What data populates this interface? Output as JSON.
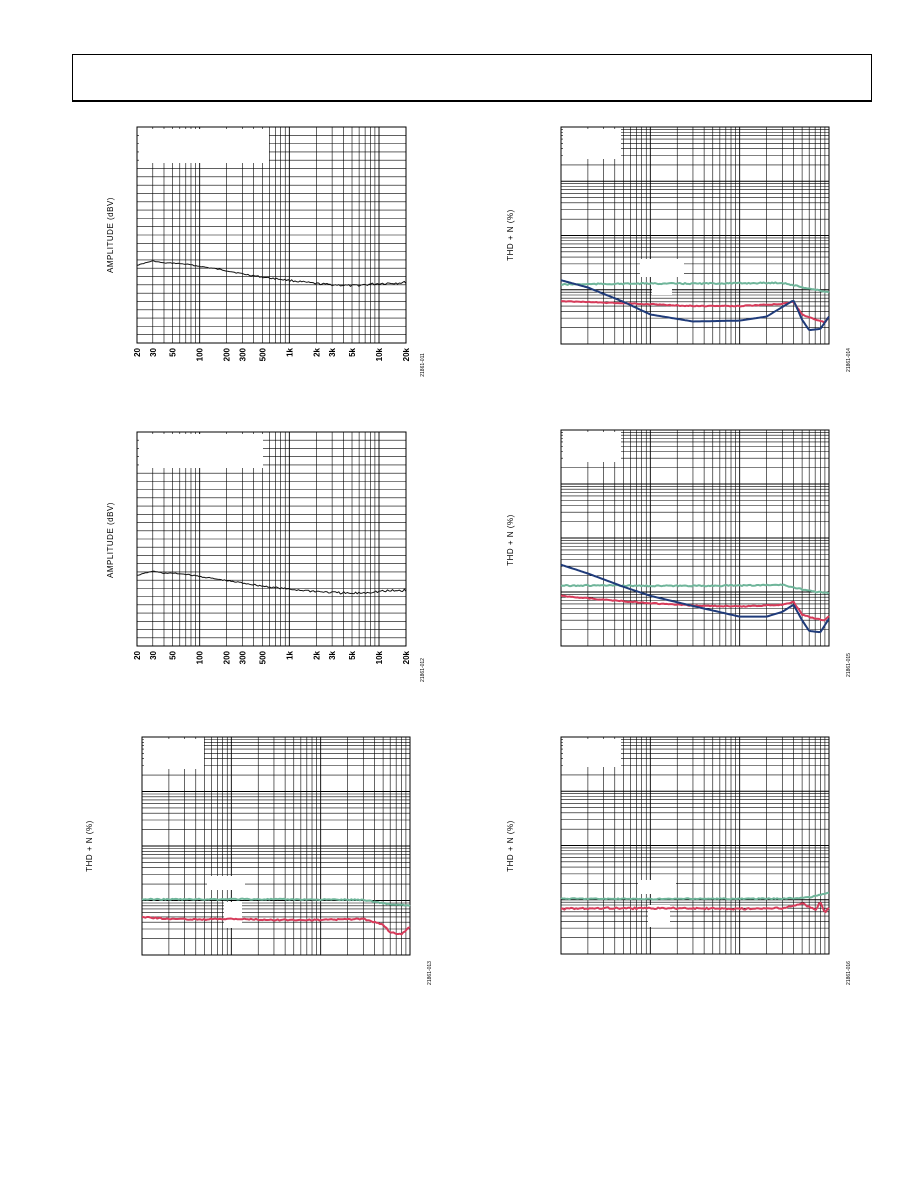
{
  "chart_data": [
    {
      "id": "p1",
      "type": "line",
      "log_x": true,
      "log_y": false,
      "ylabel": "AMPLITUDE (dBV)",
      "figure_id": "21861-011",
      "x_ticks": [
        20,
        30,
        50,
        100,
        200,
        300,
        500,
        1000,
        2000,
        3000,
        5000,
        10000,
        20000
      ],
      "x_tick_labels": [
        "20",
        "30",
        "50",
        "100",
        "200",
        "300",
        "500",
        "1k",
        "2k",
        "3k",
        "5k",
        "10k",
        "20k"
      ],
      "xlim": [
        20,
        20000
      ],
      "ylim": [
        0,
        1
      ],
      "grid": true,
      "series": [
        {
          "color": "#111111",
          "noise": 0.006,
          "x": [
            20,
            30,
            40,
            50,
            70,
            100,
            200,
            300,
            500,
            800,
            1000,
            2000,
            3000,
            5000,
            10000,
            20000
          ],
          "y": [
            0.36,
            0.38,
            0.37,
            0.37,
            0.365,
            0.355,
            0.335,
            0.32,
            0.305,
            0.295,
            0.29,
            0.275,
            0.27,
            0.265,
            0.275,
            0.28
          ]
        }
      ]
    },
    {
      "id": "p2",
      "type": "line",
      "log_x": true,
      "log_y": false,
      "ylabel": "AMPLITUDE (dBV)",
      "figure_id": "21861-012",
      "x_ticks": [
        20,
        30,
        50,
        100,
        200,
        300,
        500,
        1000,
        2000,
        3000,
        5000,
        10000,
        20000
      ],
      "x_tick_labels": [
        "20",
        "30",
        "50",
        "100",
        "200",
        "300",
        "500",
        "1k",
        "2k",
        "3k",
        "5k",
        "10k",
        "20k"
      ],
      "xlim": [
        20,
        20000
      ],
      "ylim": [
        0,
        1
      ],
      "grid": true,
      "series": [
        {
          "color": "#111111",
          "noise": 0.007,
          "x": [
            20,
            30,
            40,
            50,
            70,
            100,
            200,
            300,
            500,
            800,
            1000,
            2000,
            3000,
            5000,
            10000,
            20000
          ],
          "y": [
            0.33,
            0.35,
            0.34,
            0.34,
            0.335,
            0.325,
            0.305,
            0.295,
            0.28,
            0.27,
            0.265,
            0.255,
            0.25,
            0.245,
            0.255,
            0.26
          ]
        }
      ]
    },
    {
      "id": "p3",
      "type": "line",
      "log_x": true,
      "log_y": true,
      "ylabel": "THD + N (%)",
      "figure_id": "21861-013",
      "x_ticks": [],
      "x_tick_labels": [],
      "xlim": [
        1,
        1000
      ],
      "ylim": [
        0.001,
        10
      ],
      "grid": true,
      "series": [
        {
          "color": "#6fb59a",
          "noise": 0.02,
          "x": [
            1,
            3,
            10,
            30,
            100,
            300,
            600,
            1000
          ],
          "y": [
            0.0105,
            0.0105,
            0.0106,
            0.0105,
            0.0104,
            0.0103,
            0.0085,
            0.008
          ]
        },
        {
          "color": "#d63b5a",
          "noise": 0.02,
          "x": [
            1,
            2,
            5,
            10,
            30,
            100,
            300,
            500,
            600,
            800,
            1000
          ],
          "y": [
            0.005,
            0.0046,
            0.0045,
            0.0046,
            0.0044,
            0.0044,
            0.0046,
            0.0036,
            0.0026,
            0.0024,
            0.0033
          ]
        }
      ]
    },
    {
      "id": "p4",
      "type": "line",
      "log_x": true,
      "log_y": true,
      "ylabel": "THD + N (%)",
      "figure_id": "21861-014",
      "x_ticks": [],
      "x_tick_labels": [],
      "xlim": [
        1,
        1000
      ],
      "ylim": [
        0.001,
        10
      ],
      "grid": true,
      "series": [
        {
          "color": "#6fb59a",
          "noise": 0.02,
          "x": [
            1,
            3,
            10,
            30,
            100,
            300,
            600,
            1000
          ],
          "y": [
            0.0125,
            0.0128,
            0.013,
            0.013,
            0.0132,
            0.0134,
            0.0105,
            0.009
          ]
        },
        {
          "color": "#d63b5a",
          "noise": 0.015,
          "x": [
            1,
            3,
            10,
            30,
            100,
            300,
            400,
            500,
            700,
            900,
            1000
          ],
          "y": [
            0.0062,
            0.0058,
            0.0054,
            0.005,
            0.005,
            0.0055,
            0.006,
            0.0035,
            0.0028,
            0.0025,
            0.0032
          ]
        },
        {
          "color": "#1f3b7a",
          "noise": 0,
          "x": [
            1,
            2,
            5,
            10,
            30,
            100,
            200,
            300,
            400,
            500,
            600,
            800,
            1000
          ],
          "y": [
            0.015,
            0.011,
            0.006,
            0.0035,
            0.0026,
            0.0027,
            0.0032,
            0.0048,
            0.0064,
            0.0028,
            0.0018,
            0.0019,
            0.0032
          ]
        }
      ]
    },
    {
      "id": "p5",
      "type": "line",
      "log_x": true,
      "log_y": true,
      "ylabel": "THD + N (%)",
      "figure_id": "21861-015",
      "x_ticks": [],
      "x_tick_labels": [],
      "xlim": [
        1,
        1000
      ],
      "ylim": [
        0.001,
        10
      ],
      "grid": true,
      "series": [
        {
          "color": "#6fb59a",
          "noise": 0.02,
          "x": [
            1,
            3,
            10,
            30,
            100,
            300,
            600,
            1000
          ],
          "y": [
            0.0132,
            0.0132,
            0.013,
            0.013,
            0.0132,
            0.0136,
            0.0105,
            0.0095
          ]
        },
        {
          "color": "#d63b5a",
          "noise": 0.015,
          "x": [
            1,
            3,
            10,
            30,
            100,
            300,
            400,
            500,
            700,
            900,
            1000
          ],
          "y": [
            0.0085,
            0.0072,
            0.0062,
            0.0056,
            0.0054,
            0.0058,
            0.0066,
            0.0038,
            0.0032,
            0.003,
            0.0036
          ]
        },
        {
          "color": "#1f3b7a",
          "noise": 0,
          "x": [
            1,
            2,
            5,
            10,
            30,
            100,
            200,
            300,
            400,
            500,
            600,
            800,
            1000
          ],
          "y": [
            0.032,
            0.022,
            0.0125,
            0.0085,
            0.0055,
            0.0035,
            0.0035,
            0.0043,
            0.0058,
            0.003,
            0.0019,
            0.0018,
            0.0032
          ]
        }
      ]
    },
    {
      "id": "p6",
      "type": "line",
      "log_x": true,
      "log_y": true,
      "ylabel": "THD + N (%)",
      "figure_id": "21861-016",
      "x_ticks": [],
      "x_tick_labels": [],
      "xlim": [
        1,
        1000
      ],
      "ylim": [
        0.001,
        10
      ],
      "grid": true,
      "series": [
        {
          "color": "#6fb59a",
          "noise": 0.02,
          "x": [
            1,
            3,
            10,
            30,
            100,
            300,
            600,
            1000
          ],
          "y": [
            0.0105,
            0.0104,
            0.0103,
            0.0104,
            0.0104,
            0.0105,
            0.011,
            0.0135
          ]
        },
        {
          "color": "#d63b5a",
          "noise": 0.03,
          "x": [
            1,
            3,
            10,
            30,
            100,
            300,
            500,
            700,
            800,
            900,
            1000
          ],
          "y": [
            0.0068,
            0.007,
            0.0069,
            0.007,
            0.0068,
            0.007,
            0.0085,
            0.0065,
            0.009,
            0.0058,
            0.0072
          ]
        }
      ]
    }
  ]
}
